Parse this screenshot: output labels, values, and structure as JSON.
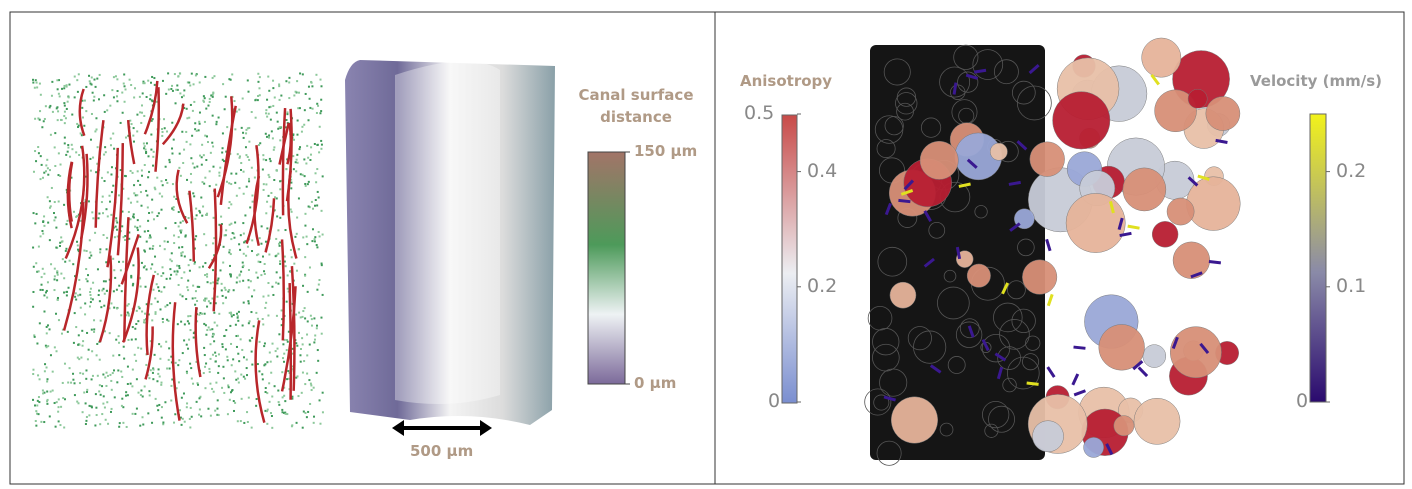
{
  "left_panel": {
    "colorbar": {
      "title": "Canal surface distance",
      "range": [
        0,
        150
      ],
      "ticks": [
        {
          "value": 0,
          "label": "0 µm"
        },
        {
          "value": 150,
          "label": "150 µm"
        }
      ]
    },
    "scale_bar": {
      "label": "500 µm"
    }
  },
  "right_panel": {
    "colorbars": [
      {
        "title": "Anisotropy",
        "range": [
          0,
          0.5
        ],
        "ticks": [
          0,
          0.2,
          0.4,
          0.5
        ]
      },
      {
        "title": "Velocity (mm/s)",
        "range": [
          0,
          0.25
        ],
        "ticks": [
          0,
          0.1,
          0.2
        ]
      }
    ]
  }
}
